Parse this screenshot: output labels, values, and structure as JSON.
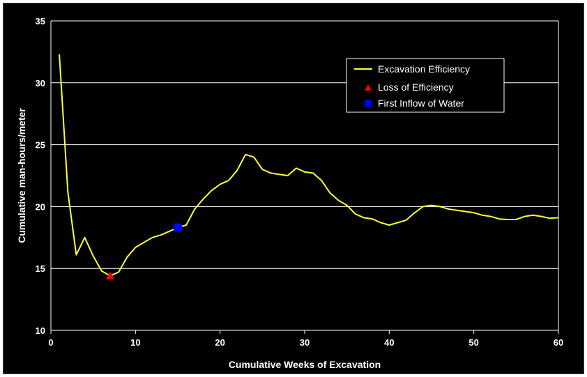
{
  "chart_data": {
    "type": "line",
    "xlabel": "Cumulative Weeks of Excavation",
    "ylabel": "Cumulative man-hours/meter",
    "xlim": [
      0,
      60
    ],
    "ylim": [
      10,
      35
    ],
    "x_ticks": [
      "0",
      "10",
      "20",
      "30",
      "40",
      "50",
      "60"
    ],
    "y_ticks": [
      "10",
      "15",
      "20",
      "25",
      "30",
      "35"
    ],
    "grid": "horizontal",
    "legend_position": "top-right",
    "colors": {
      "background": "#000000",
      "line": "#ffff33",
      "loss_marker": "#ff0000",
      "inflow_marker": "#0000ff",
      "grid": "#ffffff"
    },
    "series": [
      {
        "name": "Excavation Efficiency",
        "x": [
          1,
          2,
          3,
          4,
          5,
          6,
          7,
          8,
          9,
          10,
          11,
          12,
          13,
          14,
          15,
          16,
          17,
          18,
          19,
          20,
          21,
          22,
          23,
          24,
          25,
          26,
          27,
          28,
          29,
          30,
          31,
          32,
          33,
          34,
          35,
          36,
          37,
          38,
          39,
          40,
          41,
          42,
          43,
          44,
          45,
          46,
          47,
          48,
          49,
          50,
          51,
          52,
          53,
          54,
          55,
          56,
          57,
          58,
          59,
          60
        ],
        "y": [
          32.3,
          21.2,
          16.1,
          17.5,
          16.0,
          14.8,
          14.4,
          14.7,
          15.9,
          16.7,
          17.1,
          17.5,
          17.7,
          18.0,
          18.3,
          18.5,
          19.8,
          20.6,
          21.3,
          21.8,
          22.1,
          22.9,
          24.2,
          24.0,
          23.0,
          22.7,
          22.6,
          22.5,
          23.1,
          22.8,
          22.7,
          22.1,
          21.1,
          20.5,
          20.1,
          19.4,
          19.1,
          19.0,
          18.7,
          18.5,
          18.7,
          18.9,
          19.5,
          20.0,
          20.1,
          20.0,
          19.8,
          19.7,
          19.6,
          19.5,
          19.3,
          19.2,
          19.0,
          18.95,
          18.95,
          19.2,
          19.3,
          19.2,
          19.05,
          19.1
        ]
      },
      {
        "name": "Loss of Efficiency",
        "marker": "triangle",
        "x": [
          7
        ],
        "y": [
          14.4
        ]
      },
      {
        "name": "First Inflow of Water",
        "marker": "square",
        "x": [
          15
        ],
        "y": [
          18.3
        ]
      }
    ]
  }
}
